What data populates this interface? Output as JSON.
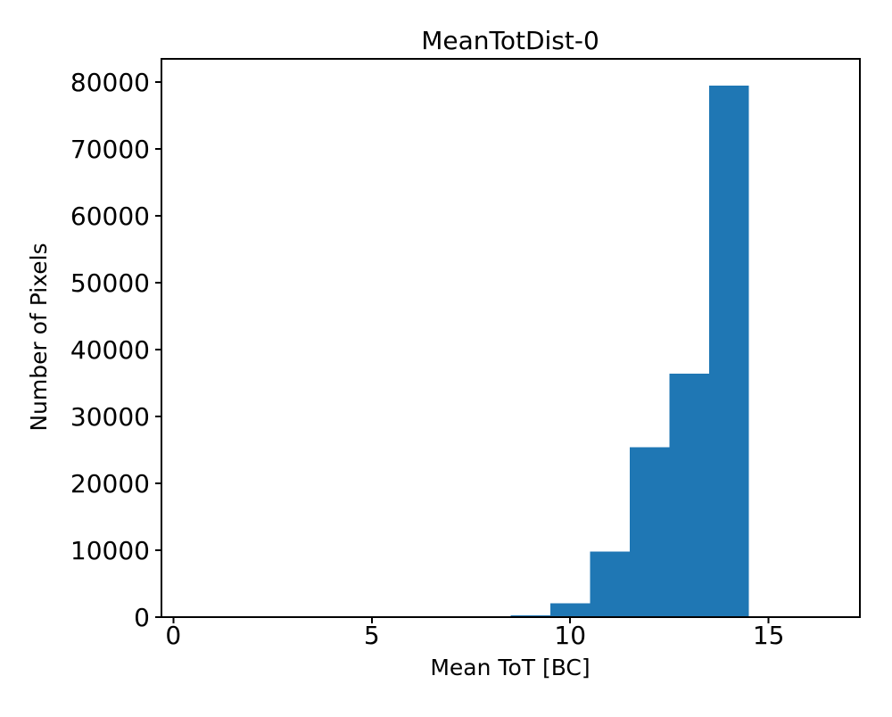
{
  "figure": {
    "title": "MeanTotDist-0",
    "xlabel": "Mean ToT [BC]",
    "ylabel": "Number of Pixels"
  },
  "chart_data": {
    "type": "bar",
    "subtype": "histogram",
    "title": "MeanTotDist-0",
    "xlabel": "Mean ToT [BC]",
    "ylabel": "Number of Pixels",
    "bar_color": "#1f77b4",
    "bin_edges": [
      8.5,
      9.5,
      10.5,
      11.5,
      12.5,
      13.5,
      14.5
    ],
    "counts": [
      250,
      2100,
      9800,
      25400,
      36400,
      79500
    ],
    "xticks": [
      0,
      5,
      10,
      15
    ],
    "yticks": [
      0,
      10000,
      20000,
      30000,
      40000,
      50000,
      60000,
      70000,
      80000
    ],
    "xlim": [
      -0.3,
      17.3
    ],
    "ylim": [
      0,
      83475
    ],
    "grid": false,
    "legend": null
  }
}
